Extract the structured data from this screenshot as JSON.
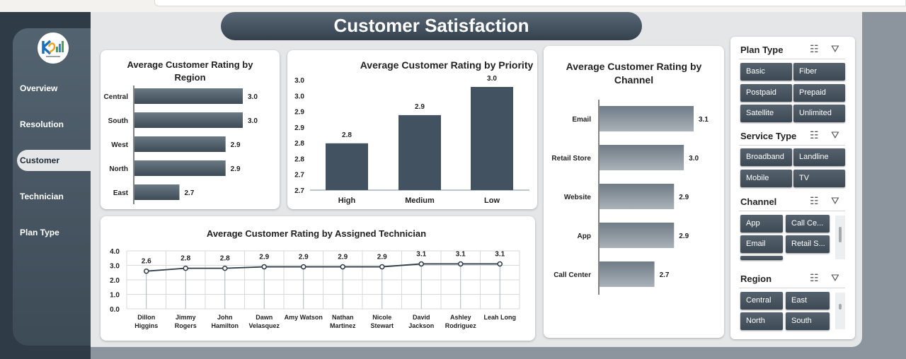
{
  "title": "Customer Satisfaction",
  "nav": {
    "items": [
      "Overview",
      "Resolution",
      "Customer",
      "Technician",
      "Plan Type"
    ],
    "active": "Customer"
  },
  "colors": {
    "bar_dark": "#435261",
    "bar_gradient_top": "#6e7a85",
    "bar_gradient_bottom": "#a9b1b8",
    "line": "#2f3c48"
  },
  "chart_data": [
    {
      "type": "bar",
      "orientation": "horizontal",
      "title": "Average Customer Rating by Region",
      "categories": [
        "Central",
        "South",
        "West",
        "North",
        "East"
      ],
      "values": [
        3.0,
        3.0,
        2.9,
        2.9,
        2.7
      ],
      "data_labels": [
        "3.0",
        "3.0",
        "2.9",
        "2.9",
        "2.7"
      ]
    },
    {
      "type": "bar",
      "title": "Average Customer Rating by Priority",
      "categories": [
        "High",
        "Medium",
        "Low"
      ],
      "values": [
        2.8,
        2.9,
        3.0
      ],
      "data_labels": [
        "2.8",
        "2.9",
        "3.0"
      ],
      "y_ticks": [
        "3.0",
        "3.0",
        "2.9",
        "2.9",
        "2.8",
        "2.8",
        "2.7",
        "2.7"
      ],
      "ylim": [
        2.7,
        3.0
      ]
    },
    {
      "type": "bar",
      "orientation": "horizontal",
      "title": "Average Customer Rating by Channel",
      "categories": [
        "Email",
        "Retail Store",
        "Website",
        "App",
        "Call Center"
      ],
      "values": [
        3.1,
        3.0,
        2.9,
        2.9,
        2.7
      ],
      "data_labels": [
        "3.1",
        "3.0",
        "2.9",
        "2.9",
        "2.7"
      ]
    },
    {
      "type": "line",
      "title": "Average Customer Rating by Assigned Technician",
      "categories": [
        [
          "Dillon",
          "Higgins"
        ],
        [
          "Jimmy",
          "Rogers"
        ],
        [
          "John",
          "Hamilton"
        ],
        [
          "Dawn",
          "Velasquez"
        ],
        [
          "Amy Watson"
        ],
        [
          "Nathan",
          "Martinez"
        ],
        [
          "Nicole",
          "Stewart"
        ],
        [
          "David",
          "Jackson"
        ],
        [
          "Ashley",
          "Rodriguez"
        ],
        [
          "Leah Long"
        ]
      ],
      "values": [
        2.6,
        2.8,
        2.8,
        2.9,
        2.9,
        2.9,
        2.9,
        3.1,
        3.1,
        3.1
      ],
      "data_labels": [
        "2.6",
        "2.8",
        "2.8",
        "2.9",
        "2.9",
        "2.9",
        "2.9",
        "3.1",
        "3.1",
        "3.1"
      ],
      "y_ticks": [
        "4.0",
        "3.0",
        "2.0",
        "1.0",
        "0.0"
      ],
      "ylim": [
        0,
        4
      ],
      "grid": true
    }
  ],
  "slicers": [
    {
      "name": "Plan Type",
      "options": [
        "Basic",
        "Fiber",
        "Postpaid",
        "Prepaid",
        "Satellite",
        "Unlimited"
      ]
    },
    {
      "name": "Service Type",
      "options": [
        "Broadband",
        "Landline",
        "Mobile",
        "TV"
      ]
    },
    {
      "name": "Channel",
      "options": [
        "App",
        "Call Ce...",
        "Email",
        "Retail S..."
      ]
    },
    {
      "name": "Region",
      "options": [
        "Central",
        "East",
        "North",
        "South"
      ]
    }
  ],
  "icons": {
    "multi_select": "multi-select-icon",
    "clear_filter": "clear-filter-icon"
  }
}
